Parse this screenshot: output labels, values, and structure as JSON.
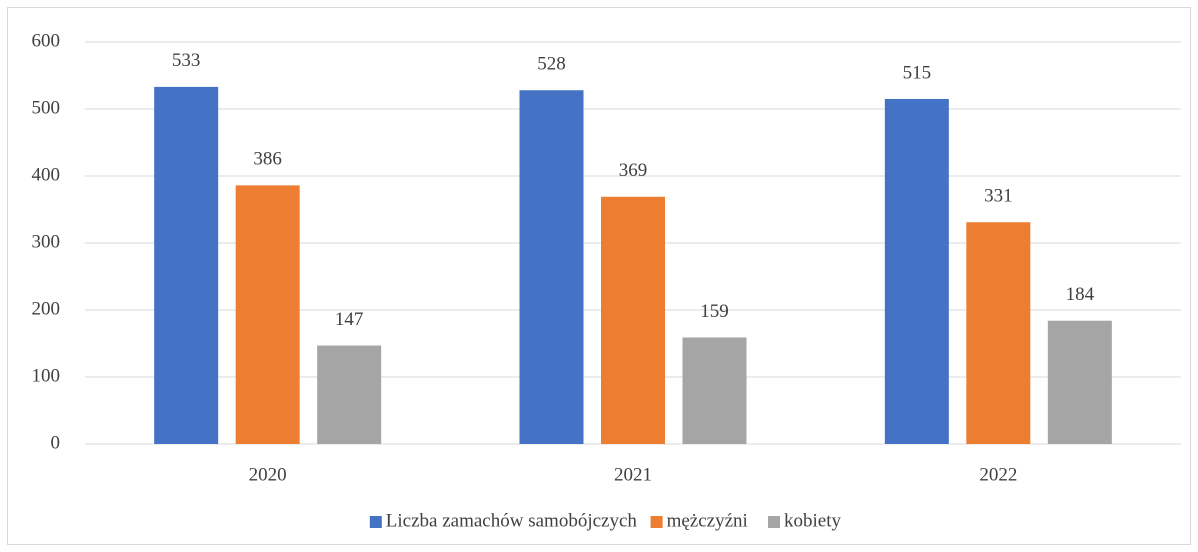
{
  "chart_data": {
    "type": "bar",
    "categories": [
      "2020",
      "2021",
      "2022"
    ],
    "series": [
      {
        "name": "Liczba zamachów samobójczych",
        "color": "#4472c4",
        "values": [
          533,
          528,
          515
        ]
      },
      {
        "name": "mężczyźni",
        "color": "#ed7d31",
        "values": [
          386,
          369,
          331
        ]
      },
      {
        "name": "kobiety",
        "color": "#a5a5a5",
        "values": [
          147,
          159,
          184
        ]
      }
    ],
    "ylim": [
      0,
      600
    ],
    "yticks": [
      0,
      100,
      200,
      300,
      400,
      500,
      600
    ],
    "grid": true,
    "legend": "bottom"
  }
}
